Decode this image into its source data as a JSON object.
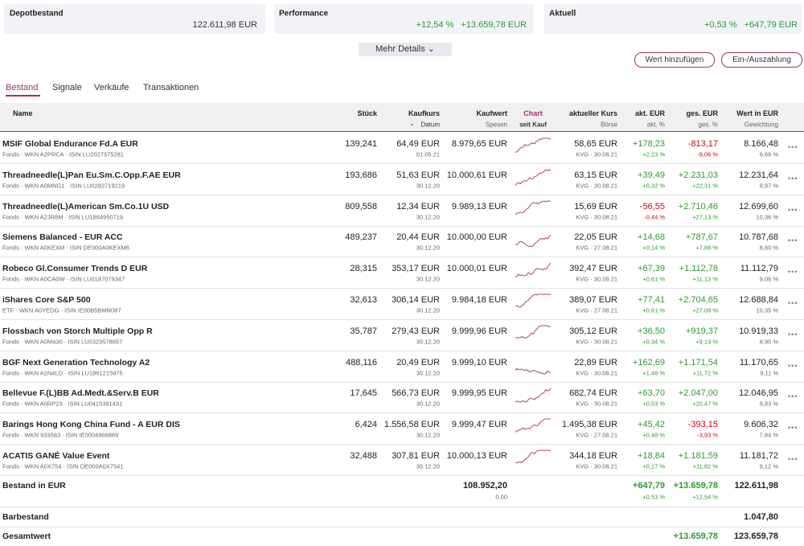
{
  "summary": [
    {
      "label": "Depotbestand",
      "values": [
        "122.611,98 EUR"
      ]
    },
    {
      "label": "Performance",
      "values": [
        "+12,54 %",
        "+13.659,78 EUR"
      ]
    },
    {
      "label": "Aktuell",
      "values": [
        "+0,53 %",
        "+647,79 EUR"
      ]
    }
  ],
  "more_details": "Mehr Details",
  "buttons": [
    "Wert hinzufügen",
    "Ein-/Auszahlung"
  ],
  "tabs": [
    "Bestand",
    "Signale",
    "Verkäufe",
    "Transaktionen"
  ],
  "columns": {
    "name": {
      "main": "Name"
    },
    "stueck": {
      "main": "Stück"
    },
    "kaufkurs": {
      "main": "Kaufkurs",
      "sub": "Datum"
    },
    "kaufwert": {
      "main": "Kaufwert",
      "sub": "Spesen"
    },
    "chart": {
      "main": "Chart",
      "sub": "seit Kauf"
    },
    "kurs": {
      "main": "aktueller Kurs",
      "sub": "Börse"
    },
    "akt_eur": {
      "main": "akt. EUR",
      "sub": "akt. %"
    },
    "ges_eur": {
      "main": "ges. EUR",
      "sub": "ges. %"
    },
    "wert": {
      "main": "Wert in EUR",
      "sub": "Gewichtung"
    }
  },
  "rows": [
    {
      "name": "MSIF Global Endurance Fd.A EUR",
      "info": "Fonds · WKN A2PRCA · ISIN LU2027375281",
      "stueck": "139,241",
      "kaufkurs": "64,49 EUR",
      "datum": "01.05.21",
      "kaufwert": "8.979,65 EUR",
      "kurs": "58,65 EUR",
      "boerse": "KVG · 30.08.21",
      "akt_eur": "+178,23",
      "akt_pct": "+2,23 %",
      "ges_eur": "-813,17",
      "ges_pct": "-9,06 %",
      "wert": "8.166,48",
      "gewichtung": "6,66 %"
    },
    {
      "name": "Threadneedle(L)Pan Eu.Sm.C.Opp.F.AE EUR",
      "info": "Fonds · WKN A0MNG1 · ISIN LU0282719219",
      "stueck": "193,686",
      "kaufkurs": "51,63 EUR",
      "datum": "30.12.20",
      "kaufwert": "10.000,61 EUR",
      "kurs": "63,15 EUR",
      "boerse": "KVG · 30.08.21",
      "akt_eur": "+39,49",
      "akt_pct": "+0,32 %",
      "ges_eur": "+2.231,03",
      "ges_pct": "+22,31 %",
      "wert": "12.231,64",
      "gewichtung": "9,97 %"
    },
    {
      "name": "Threadneedle(L)American Sm.Co.1U USD",
      "info": "Fonds · WKN A2JR8M · ISIN LU1864950719",
      "stueck": "809,558",
      "kaufkurs": "12,34 EUR",
      "datum": "30.12.20",
      "kaufwert": "9.989,13 EUR",
      "kurs": "15,69 EUR",
      "boerse": "KVG · 30.08.21",
      "akt_eur": "-56,55",
      "akt_pct": "-0,44 %",
      "ges_eur": "+2.710,46",
      "ges_pct": "+27,13 %",
      "wert": "12.699,60",
      "gewichtung": "10,36 %"
    },
    {
      "name": "Siemens Balanced - EUR ACC",
      "info": "Fonds · WKN A0KEXM · ISIN DE000A0KEXM6",
      "stueck": "489,237",
      "kaufkurs": "20,44 EUR",
      "datum": "30.12.20",
      "kaufwert": "10.000,00 EUR",
      "kurs": "22,05 EUR",
      "boerse": "KVG · 27.08.21",
      "akt_eur": "+14,68",
      "akt_pct": "+0,14 %",
      "ges_eur": "+787,67",
      "ges_pct": "+7,88 %",
      "wert": "10.787,68",
      "gewichtung": "8,80 %"
    },
    {
      "name": "Robeco Gl.Consumer Trends D EUR",
      "info": "Fonds · WKN A0CA0W · ISIN LU0187079347",
      "stueck": "28,315",
      "kaufkurs": "353,17 EUR",
      "datum": "30.12.20",
      "kaufwert": "10.000,01 EUR",
      "kurs": "392,47 EUR",
      "boerse": "KVG · 30.08.21",
      "akt_eur": "+67,39",
      "akt_pct": "+0,61 %",
      "ges_eur": "+1.112,78",
      "ges_pct": "+11,13 %",
      "wert": "11.112,79",
      "gewichtung": "9,06 %"
    },
    {
      "name": "iShares Core S&P 500",
      "info": "ETF · WKN A0YEDG · ISIN IE00B5BMR087",
      "stueck": "32,613",
      "kaufkurs": "306,14 EUR",
      "datum": "30.12.20",
      "kaufwert": "9.984,18 EUR",
      "kurs": "389,07 EUR",
      "boerse": "KVG · 27.08.21",
      "akt_eur": "+77,41",
      "akt_pct": "+0,61 %",
      "ges_eur": "+2.704,65",
      "ges_pct": "+27,09 %",
      "wert": "12.688,84",
      "gewichtung": "10,35 %"
    },
    {
      "name": "Flossbach von Storch Multiple Opp R",
      "info": "Fonds · WKN A0M430 · ISIN LU0323578657",
      "stueck": "35,787",
      "kaufkurs": "279,43 EUR",
      "datum": "30.12.20",
      "kaufwert": "9.999,96 EUR",
      "kurs": "305,12 EUR",
      "boerse": "KVG · 30.08.21",
      "akt_eur": "+36,50",
      "akt_pct": "+0,34 %",
      "ges_eur": "+919,37",
      "ges_pct": "+9,19 %",
      "wert": "10.919,33",
      "gewichtung": "8,90 %"
    },
    {
      "name": "BGF Next Generation Technology A2",
      "info": "Fonds · WKN A2N4LD · ISIN LU1861215975",
      "stueck": "488,116",
      "kaufkurs": "20,49 EUR",
      "datum": "30.12.20",
      "kaufwert": "9.999,10 EUR",
      "kurs": "22,89 EUR",
      "boerse": "KVG · 30.08.21",
      "akt_eur": "+162,69",
      "akt_pct": "+1,48 %",
      "ges_eur": "+1.171,54",
      "ges_pct": "+11,72 %",
      "wert": "11.170,65",
      "gewichtung": "9,11 %"
    },
    {
      "name": "Bellevue F.(L)BB Ad.Medt.&Serv.B EUR",
      "info": "Fonds · WKN A0RP23 · ISIN LU0415391431",
      "stueck": "17,645",
      "kaufkurs": "566,73 EUR",
      "datum": "30.12.20",
      "kaufwert": "9.999,95 EUR",
      "kurs": "682,74 EUR",
      "boerse": "KVG · 30.08.21",
      "akt_eur": "+63,70",
      "akt_pct": "+0,53 %",
      "ges_eur": "+2.047,00",
      "ges_pct": "+20,47 %",
      "wert": "12.046,95",
      "gewichtung": "9,83 %"
    },
    {
      "name": "Barings Hong Kong China Fund - A EUR DIS",
      "info": "Fonds · WKN 933583 · ISIN IE0004866889",
      "stueck": "6,424",
      "kaufkurs": "1.556,58 EUR",
      "datum": "30.12.20",
      "kaufwert": "9.999,47 EUR",
      "kurs": "1.495,38 EUR",
      "boerse": "KVG · 27.08.21",
      "akt_eur": "+45,42",
      "akt_pct": "+0,48 %",
      "ges_eur": "-393,15",
      "ges_pct": "-3,93 %",
      "wert": "9.606,32",
      "gewichtung": "7,84 %"
    },
    {
      "name": "ACATIS GANÉ Value Event",
      "info": "Fonds · WKN A0X754 · ISIN DE000A0X7541",
      "stueck": "32,488",
      "kaufkurs": "307,81 EUR",
      "datum": "30.12.20",
      "kaufwert": "10.000,13 EUR",
      "kurs": "344,18 EUR",
      "boerse": "KVG · 30.08.21",
      "akt_eur": "+18,84",
      "akt_pct": "+0,17 %",
      "ges_eur": "+1.181,59",
      "ges_pct": "+11,82 %",
      "wert": "11.181,72",
      "gewichtung": "9,12 %"
    }
  ],
  "totals": [
    {
      "name": "Bestand in EUR",
      "kaufwert": "108.952,20",
      "spesen": "0,00",
      "akt_eur": "+647,79",
      "akt_pct": "+0,53 %",
      "ges_eur": "+13.659,78",
      "ges_pct": "+12,54 %",
      "wert": "122.611,98"
    },
    {
      "name": "Barbestand",
      "wert": "1.047,80"
    },
    {
      "name": "Gesamtwert",
      "ges_eur": "+13.659,78",
      "wert": "123.659,78"
    }
  ]
}
